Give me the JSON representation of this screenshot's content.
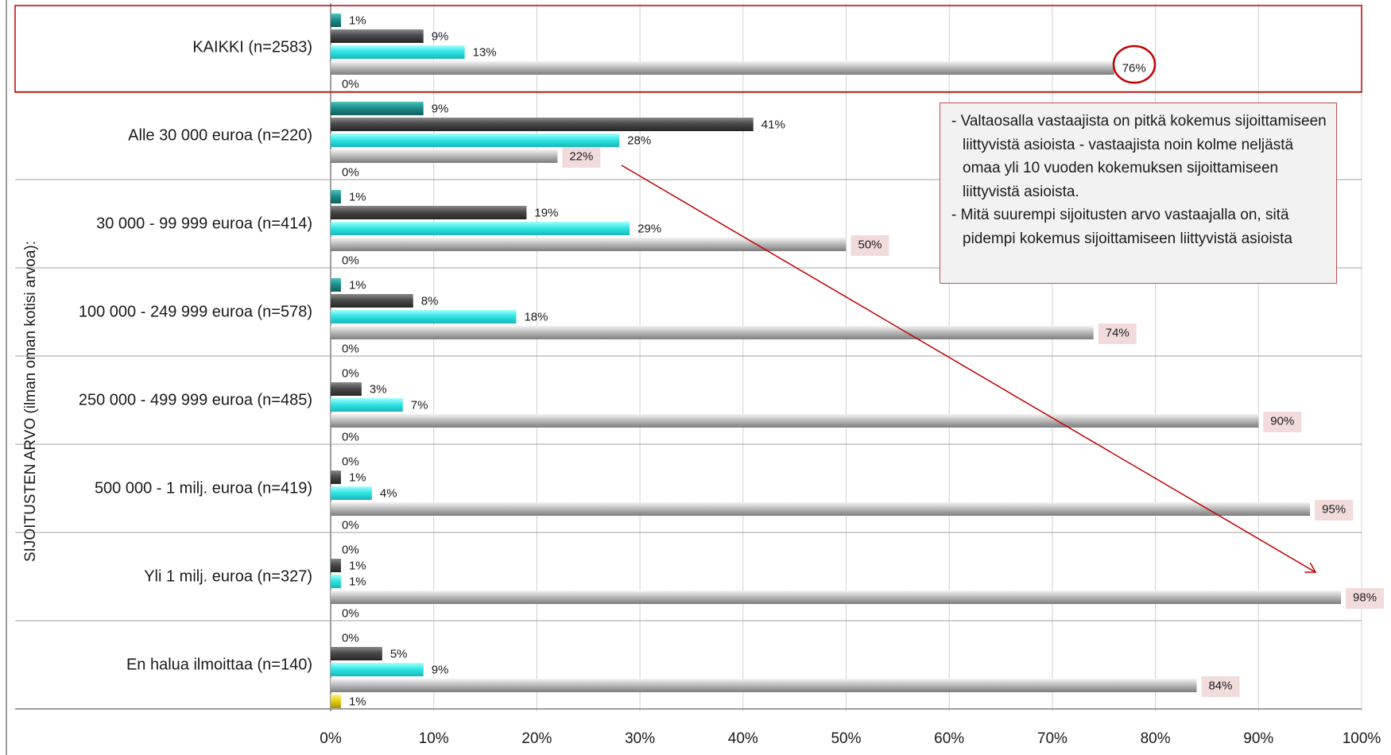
{
  "chart_data": {
    "type": "bar",
    "orientation": "horizontal",
    "ylabel": "SIJOITUSTEN ARVO (ilman oman kotisi arvoa):",
    "xlim": [
      0,
      100
    ],
    "x_ticks": [
      "0%",
      "10%",
      "20%",
      "30%",
      "40%",
      "50%",
      "60%",
      "70%",
      "80%",
      "90%",
      "100%"
    ],
    "grid": true,
    "categories": [
      "KAIKKI (n=2583)",
      "Alle 30 000 euroa (n=220)",
      "30 000 - 99 999 euroa (n=414)",
      "100 000 - 249 999 euroa (n=578)",
      "250 000 - 499 999 euroa (n=485)",
      "500 000 - 1 milj. euroa (n=419)",
      "Yli 1 milj. euroa (n=327)",
      "En halua ilmoittaa (n=140)"
    ],
    "series": [
      {
        "color": "#1f8f8c",
        "values": [
          1,
          9,
          1,
          1,
          0,
          0,
          0,
          0
        ],
        "labels": [
          "1%",
          "9%",
          "1%",
          "1%",
          "0%",
          "0%",
          "0%",
          "0%"
        ]
      },
      {
        "color": "#4a4a4a",
        "values": [
          9,
          41,
          19,
          8,
          3,
          1,
          1,
          5
        ],
        "labels": [
          "9%",
          "41%",
          "19%",
          "8%",
          "3%",
          "1%",
          "1%",
          "5%"
        ]
      },
      {
        "color": "#33e6e6",
        "values": [
          13,
          28,
          29,
          18,
          7,
          4,
          1,
          9
        ],
        "labels": [
          "13%",
          "28%",
          "29%",
          "18%",
          "7%",
          "4%",
          "1%",
          "9%"
        ]
      },
      {
        "color": "#bdbdbd",
        "values": [
          76,
          22,
          50,
          74,
          90,
          95,
          98,
          84
        ],
        "labels": [
          "76%",
          "22%",
          "50%",
          "74%",
          "90%",
          "95%",
          "98%",
          "84%"
        ]
      },
      {
        "color": "#e6d21a",
        "values": [
          0,
          0,
          0,
          0,
          0,
          0,
          0,
          1
        ],
        "labels": [
          "0%",
          "0%",
          "0%",
          "0%",
          "0%",
          "0%",
          "0%",
          "1%"
        ]
      }
    ],
    "highlight_label_bg": "#f2dcdb",
    "accent_color": "#c00000",
    "annotation_lines": [
      "- Valtaosalla vastaajista on pitkä kokemus sijoittamiseen liittyvistä asioista - vastaajista noin kolme neljästä omaa yli 10 vuoden kokemuksen sijoittamiseen liittyvistä asioista.",
      "- Mitä suurempi sijoitusten arvo vastaajalla on, sitä pidempi kokemus sijoittamiseen liittyvistä asioista"
    ]
  }
}
